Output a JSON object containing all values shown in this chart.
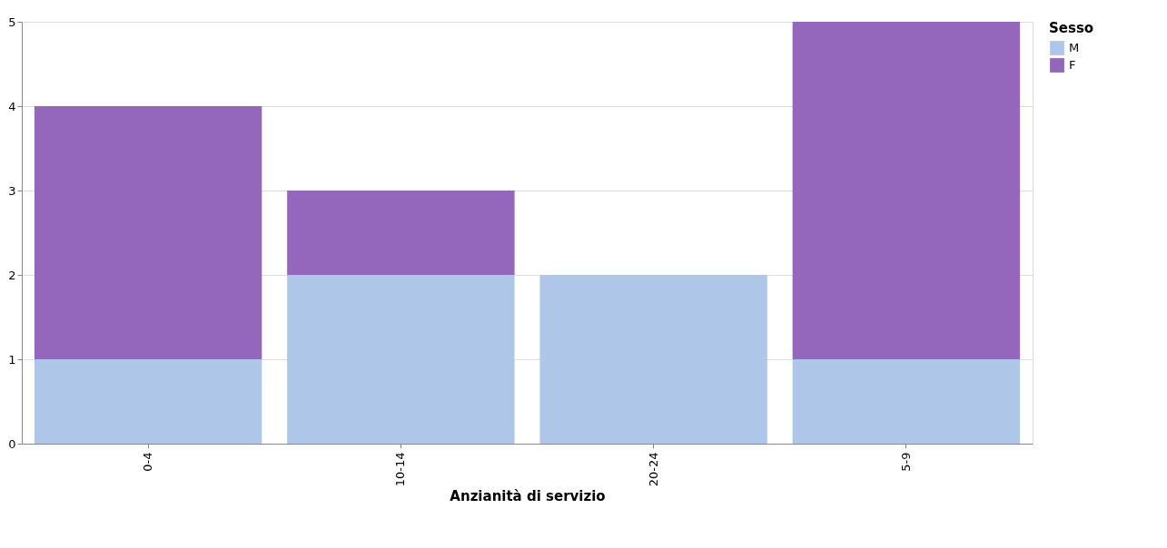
{
  "chart_data": {
    "type": "bar",
    "xlabel": "Anzianità di servizio",
    "legend_title": "Sesso",
    "categories": [
      "0-4",
      "10-14",
      "20-24",
      "5-9"
    ],
    "stacked": true,
    "series": [
      {
        "name": "M",
        "color": "#aec7e8",
        "values": [
          1,
          2,
          2,
          1
        ]
      },
      {
        "name": "F",
        "color": "#9467bd",
        "values": [
          3,
          1,
          null,
          4
        ]
      }
    ],
    "ylim": [
      0,
      5
    ],
    "yticks": [
      0,
      1,
      2,
      3,
      4,
      5
    ],
    "grid": "y",
    "legend": "top right"
  }
}
